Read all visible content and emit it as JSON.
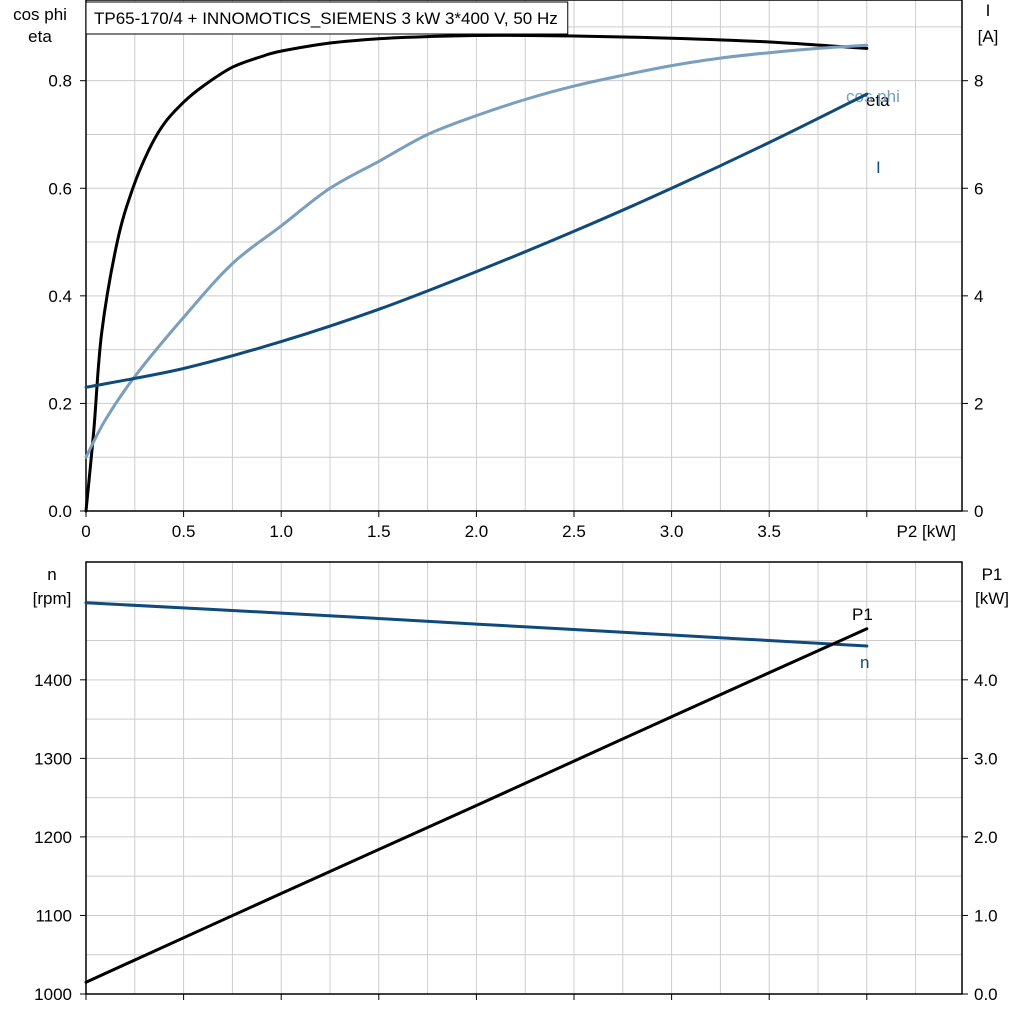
{
  "title": "TP65-170/4 + INNOMOTICS_SIEMENS   3 kW   3*400 V, 50 Hz",
  "colors": {
    "eta": "#000000",
    "cosphi": "#7a9ebd",
    "current": "#0e4a7c",
    "speed": "#0e4a7c",
    "p1": "#000000",
    "grid": "#cccccc",
    "frame": "#000000"
  },
  "chart_data": [
    {
      "type": "line",
      "name": "top",
      "left_axis_label": [
        "cos phi",
        "eta"
      ],
      "right_axis_label": [
        "I",
        "[A]"
      ],
      "xlabel": "P2 [kW]",
      "x_ticks": [
        "0",
        "0.5",
        "1.0",
        "1.5",
        "2.0",
        "2.5",
        "3.0",
        "3.5"
      ],
      "x_tick_values": [
        0,
        0.5,
        1.0,
        1.5,
        2.0,
        2.5,
        3.0,
        3.5
      ],
      "xlim": [
        0,
        4.5
      ],
      "left_ylim": [
        0,
        0.95
      ],
      "left_ticks": [
        "0.0",
        "0.2",
        "0.4",
        "0.6",
        "0.8"
      ],
      "left_tick_values": [
        0,
        0.2,
        0.4,
        0.6,
        0.8
      ],
      "right_ylim": [
        0,
        9.5
      ],
      "right_ticks": [
        "0",
        "2",
        "4",
        "6",
        "8"
      ],
      "right_tick_values": [
        0,
        2,
        4,
        6,
        8
      ],
      "grid": true,
      "series": [
        {
          "name": "eta",
          "axis": "left",
          "x": [
            0,
            0.04,
            0.08,
            0.16,
            0.24,
            0.32,
            0.4,
            0.5,
            0.6,
            0.75,
            0.9,
            1.0,
            1.25,
            1.5,
            1.75,
            2.0,
            2.25,
            2.5,
            3.0,
            3.5,
            4.0
          ],
          "y": [
            0,
            0.15,
            0.33,
            0.5,
            0.6,
            0.67,
            0.72,
            0.76,
            0.79,
            0.825,
            0.845,
            0.855,
            0.87,
            0.878,
            0.882,
            0.884,
            0.884,
            0.883,
            0.879,
            0.872,
            0.86
          ]
        },
        {
          "name": "cos phi",
          "axis": "left",
          "x": [
            0,
            0.1,
            0.25,
            0.5,
            0.75,
            1.0,
            1.25,
            1.5,
            1.75,
            2.0,
            2.25,
            2.5,
            2.75,
            3.0,
            3.25,
            3.5,
            3.75,
            4.0
          ],
          "y": [
            0.1,
            0.17,
            0.25,
            0.36,
            0.46,
            0.53,
            0.6,
            0.65,
            0.7,
            0.735,
            0.765,
            0.79,
            0.81,
            0.828,
            0.842,
            0.852,
            0.86,
            0.866
          ]
        },
        {
          "name": "I",
          "axis": "right",
          "x": [
            0,
            0.5,
            1.0,
            1.5,
            2.0,
            2.5,
            3.0,
            3.5,
            4.0
          ],
          "y": [
            2.3,
            2.65,
            3.15,
            3.75,
            4.45,
            5.2,
            6.0,
            6.85,
            7.75
          ]
        }
      ]
    },
    {
      "type": "line",
      "name": "bottom",
      "left_axis_label": [
        "n",
        "[rpm]"
      ],
      "right_axis_label": [
        "P1",
        "[kW]"
      ],
      "xlim": [
        0,
        4.5
      ],
      "left_ylim": [
        1000,
        1550
      ],
      "left_ticks": [
        "1000",
        "1100",
        "1200",
        "1300",
        "1400"
      ],
      "left_tick_values": [
        1000,
        1100,
        1200,
        1300,
        1400
      ],
      "right_ylim": [
        0,
        5.5
      ],
      "right_ticks": [
        "0.0",
        "1.0",
        "2.0",
        "3.0",
        "4.0"
      ],
      "right_tick_values": [
        0,
        1,
        2,
        3,
        4
      ],
      "grid": true,
      "series": [
        {
          "name": "n",
          "axis": "left",
          "x": [
            0,
            1.0,
            2.0,
            3.0,
            4.0
          ],
          "y": [
            1498,
            1485,
            1471,
            1457,
            1443
          ]
        },
        {
          "name": "P1",
          "axis": "right",
          "x": [
            0,
            1.0,
            2.0,
            3.0,
            4.0
          ],
          "y": [
            0.15,
            1.28,
            2.4,
            3.53,
            4.65
          ]
        }
      ]
    }
  ]
}
